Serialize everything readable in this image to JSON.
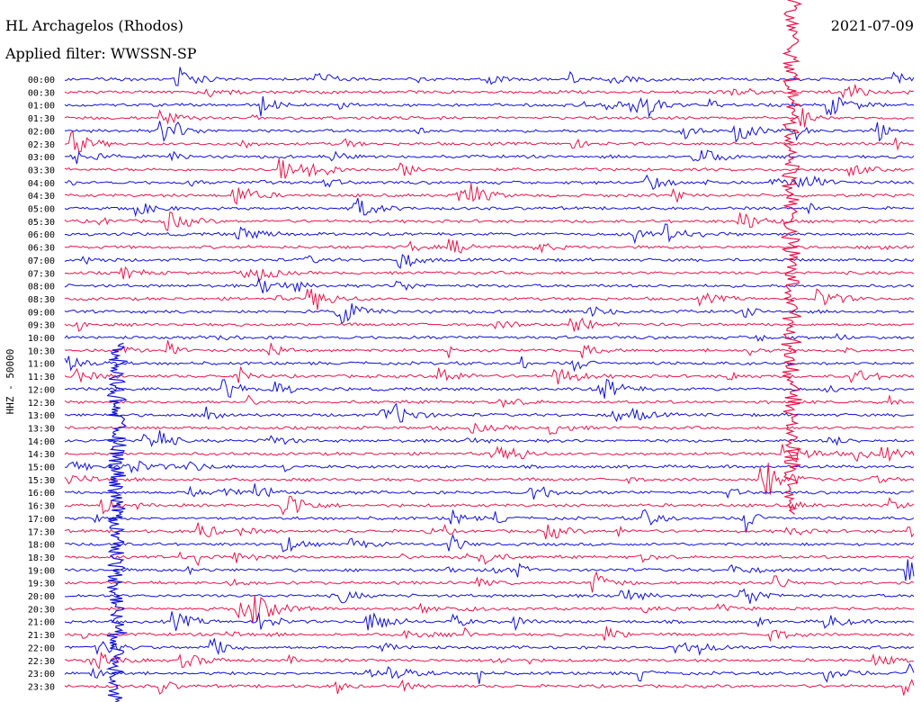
{
  "header": {
    "station_title": "HL Archagelos (Rhodos)",
    "date": "2021-07-09",
    "filter_label": "Applied filter: WWSSN-SP"
  },
  "chart_data": {
    "type": "line",
    "chart_kind": "helicorder",
    "channel_label": "HHZ - 50000",
    "rows": [
      "00:00",
      "00:30",
      "01:00",
      "01:30",
      "02:00",
      "02:30",
      "03:00",
      "03:30",
      "04:00",
      "04:30",
      "05:00",
      "05:30",
      "06:00",
      "06:30",
      "07:00",
      "07:30",
      "08:00",
      "08:30",
      "09:00",
      "09:30",
      "10:00",
      "10:30",
      "11:00",
      "11:30",
      "12:00",
      "12:30",
      "13:00",
      "13:30",
      "14:00",
      "14:30",
      "15:00",
      "15:30",
      "16:00",
      "16:30",
      "17:00",
      "17:30",
      "18:00",
      "18:30",
      "19:00",
      "19:30",
      "20:00",
      "20:30",
      "21:00",
      "21:30",
      "22:00",
      "22:30",
      "23:00",
      "23:30"
    ],
    "row_colors": [
      "#1010d8",
      "#e8154a"
    ],
    "row_duration_minutes": 30,
    "major_events": [
      {
        "label": "large event",
        "row_start": "00:00",
        "row_end": "16:30",
        "color": "#e8154a"
      },
      {
        "label": "large event",
        "row_start": "10:30",
        "row_end": "23:30",
        "color": "#1010d8"
      }
    ]
  }
}
